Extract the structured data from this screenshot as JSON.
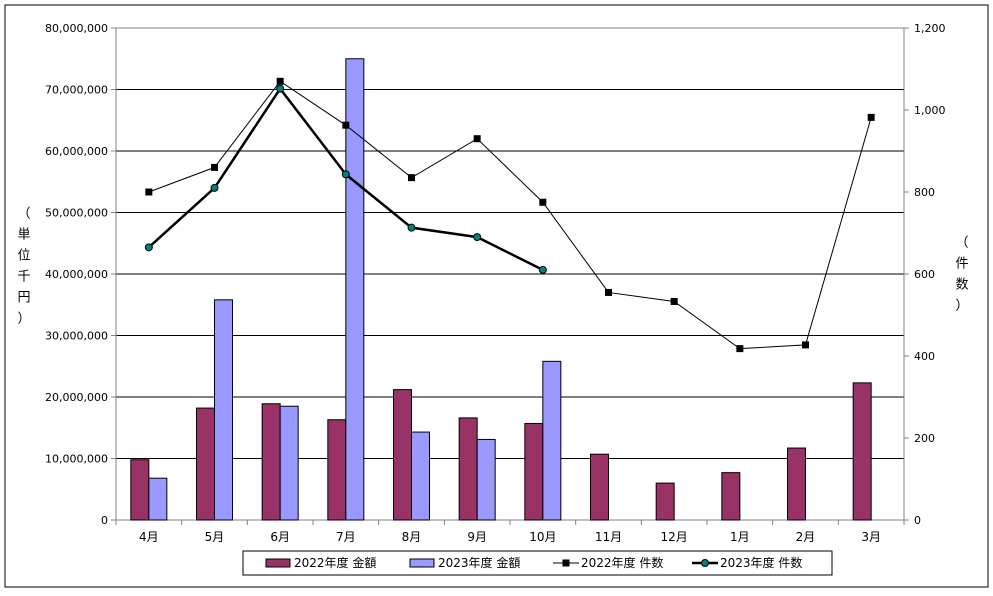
{
  "chart_data": {
    "type": "bar",
    "categories": [
      "4月",
      "5月",
      "6月",
      "7月",
      "8月",
      "9月",
      "10月",
      "11月",
      "12月",
      "1月",
      "2月",
      "3月"
    ],
    "y_left": {
      "label": "（単位千円）",
      "ylim": [
        0,
        80000000
      ],
      "ticks": [
        "0",
        "10,000,000",
        "20,000,000",
        "30,000,000",
        "40,000,000",
        "50,000,000",
        "60,000,000",
        "70,000,000",
        "80,000,000"
      ]
    },
    "y_right": {
      "label": "（件数）",
      "ylim": [
        0,
        1200
      ],
      "ticks": [
        "0",
        "200",
        "400",
        "600",
        "800",
        "1,000",
        "1,200"
      ]
    },
    "series": [
      {
        "name": "2022年度 金額",
        "type": "bar",
        "axis": "left",
        "color": "#993366",
        "values": [
          9800000,
          18200000,
          18900000,
          16300000,
          21200000,
          16600000,
          15700000,
          10700000,
          6000000,
          7700000,
          11700000,
          22300000
        ]
      },
      {
        "name": "2023年度 金額",
        "type": "bar",
        "axis": "left",
        "color": "#9999ff",
        "values": [
          6800000,
          35800000,
          18500000,
          75000000,
          14300000,
          13100000,
          25800000,
          null,
          null,
          null,
          null,
          null
        ]
      },
      {
        "name": "2022年度 件数",
        "type": "line",
        "axis": "right",
        "color": "#000000",
        "marker": "square",
        "values": [
          800,
          860,
          1070,
          963,
          835,
          930,
          775,
          555,
          533,
          418,
          427,
          982
        ]
      },
      {
        "name": "2023年度 件数",
        "type": "line",
        "axis": "right",
        "color": "#000000",
        "marker": "circle",
        "values": [
          665,
          810,
          1052,
          843,
          713,
          690,
          610,
          null,
          null,
          null,
          null,
          null
        ]
      }
    ],
    "grid": true,
    "legend": "bottom"
  }
}
